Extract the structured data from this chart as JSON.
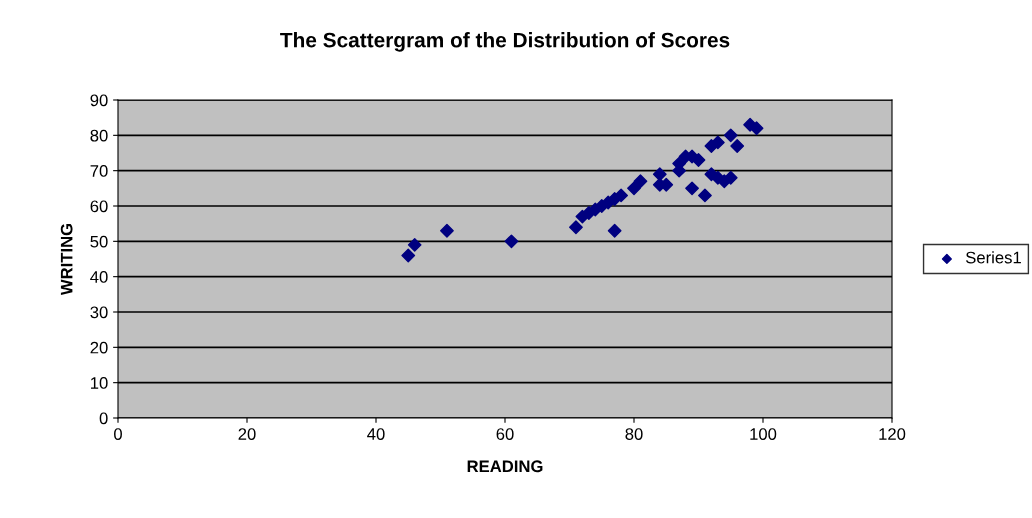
{
  "chart_data": {
    "type": "scatter",
    "title": "The Scattergram of the Distribution of Scores",
    "xlabel": "READING",
    "ylabel": "WRITING",
    "series": [
      {
        "name": "Series1",
        "color": "#000080",
        "x": [
          45,
          46,
          51,
          61,
          71,
          72,
          73,
          74,
          75,
          76,
          77,
          78,
          77,
          80,
          81,
          84,
          84,
          85,
          87,
          87,
          88,
          89,
          90,
          89,
          91,
          92,
          93,
          92,
          93,
          94,
          95,
          95,
          96,
          98,
          99
        ],
        "values": [
          46,
          49,
          53,
          50,
          54,
          57,
          58,
          59,
          60,
          61,
          62,
          63,
          53,
          65,
          67,
          69,
          66,
          66,
          70,
          72,
          74,
          74,
          73,
          65,
          63,
          77,
          78,
          69,
          68,
          67,
          68,
          80,
          77,
          83,
          82
        ]
      }
    ],
    "xlim": [
      0,
      120
    ],
    "xticks": [
      0,
      20,
      40,
      60,
      80,
      100,
      120
    ],
    "ylim": [
      0,
      90
    ],
    "yticks": [
      0,
      10,
      20,
      30,
      40,
      50,
      60,
      70,
      80,
      90
    ],
    "grid": "y",
    "legend": "right",
    "marker": "diamond"
  }
}
